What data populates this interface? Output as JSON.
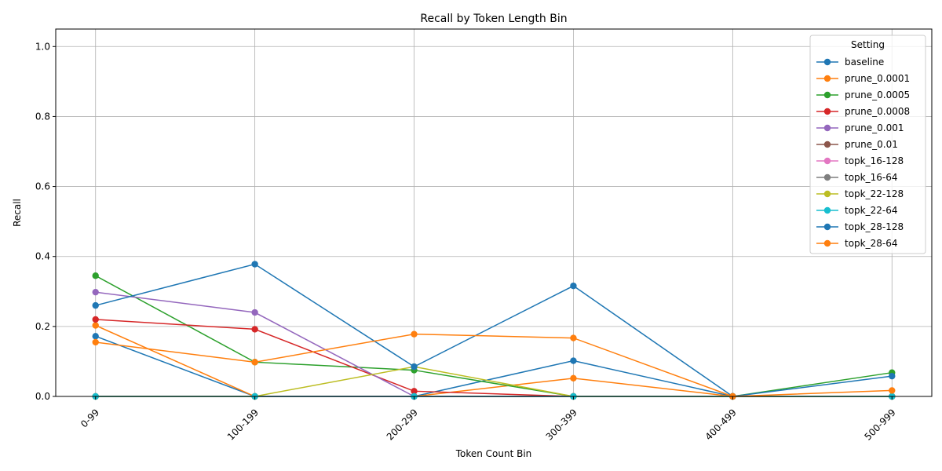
{
  "chart_data": {
    "type": "line",
    "title": "Recall by Token Length Bin",
    "xlabel": "Token Count Bin",
    "ylabel": "Recall",
    "categories": [
      "0-99",
      "100-199",
      "200-299",
      "300-399",
      "400-499",
      "500-999"
    ],
    "ylim": [
      0,
      1.05
    ],
    "yticks": [
      0.0,
      0.2,
      0.4,
      0.6,
      0.8,
      1.0
    ],
    "ytick_labels": [
      "0.0",
      "0.2",
      "0.4",
      "0.6",
      "0.8",
      "1.0"
    ],
    "grid": true,
    "legend": {
      "title": "Setting",
      "placement": "top-right"
    },
    "series": [
      {
        "name": "baseline",
        "color": "#1f77b4",
        "values": [
          0.172,
          0.0,
          0.0,
          0.102,
          0.0,
          0.0
        ]
      },
      {
        "name": "prune_0.0001",
        "color": "#ff7f0e",
        "values": [
          0.203,
          0.0,
          0.0,
          0.052,
          0.0,
          0.0
        ]
      },
      {
        "name": "prune_0.0005",
        "color": "#2ca02c",
        "values": [
          0.345,
          0.098,
          0.075,
          0.0,
          0.0,
          0.068
        ]
      },
      {
        "name": "prune_0.0008",
        "color": "#d62728",
        "values": [
          0.22,
          0.192,
          0.015,
          0.0,
          0.0,
          0.0
        ]
      },
      {
        "name": "prune_0.001",
        "color": "#9467bd",
        "values": [
          0.298,
          0.24,
          0.0,
          0.0,
          0.0,
          0.0
        ]
      },
      {
        "name": "prune_0.01",
        "color": "#8c564b",
        "values": [
          0.0,
          0.0,
          0.0,
          0.0,
          0.0,
          0.0
        ]
      },
      {
        "name": "topk_16-128",
        "color": "#e377c2",
        "values": [
          0.0,
          0.0,
          0.0,
          0.0,
          0.0,
          0.0
        ]
      },
      {
        "name": "topk_16-64",
        "color": "#7f7f7f",
        "values": [
          0.0,
          0.0,
          0.0,
          0.0,
          0.0,
          0.0
        ]
      },
      {
        "name": "topk_22-128",
        "color": "#bcbd22",
        "values": [
          0.0,
          0.0,
          0.085,
          0.0,
          0.0,
          0.0
        ]
      },
      {
        "name": "topk_22-64",
        "color": "#17becf",
        "values": [
          0.0,
          0.0,
          0.0,
          0.0,
          0.0,
          0.0
        ]
      },
      {
        "name": "topk_28-128",
        "color": "#1f77b4",
        "values": [
          0.26,
          0.378,
          0.085,
          0.316,
          0.0,
          0.058
        ]
      },
      {
        "name": "topk_28-64",
        "color": "#ff7f0e",
        "values": [
          0.155,
          0.098,
          0.178,
          0.167,
          0.0,
          0.017
        ]
      }
    ]
  }
}
